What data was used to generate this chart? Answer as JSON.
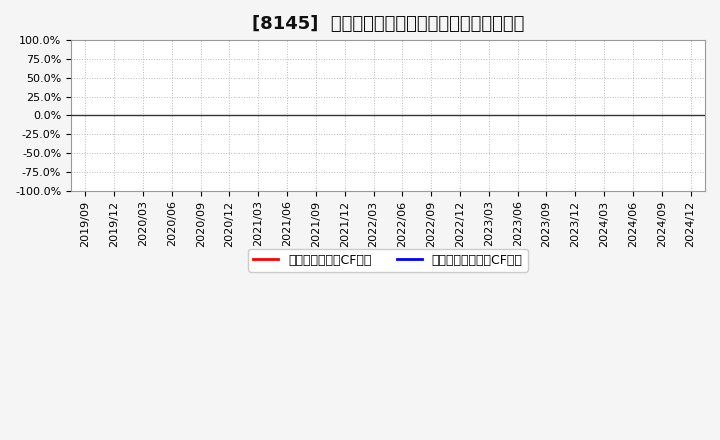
{
  "title": "[8145]  有利子負債キャッシュフロー比率の推移",
  "ylim": [
    -1.0,
    1.0
  ],
  "yticks": [
    -1.0,
    -0.75,
    -0.5,
    -0.25,
    0.0,
    0.25,
    0.5,
    0.75,
    1.0
  ],
  "ytick_labels": [
    "-100.0%",
    "-75.0%",
    "-50.0%",
    "-25.0%",
    "0.0%",
    "25.0%",
    "50.0%",
    "75.0%",
    "100.0%"
  ],
  "xtick_labels": [
    "2019/09",
    "2019/12",
    "2020/03",
    "2020/06",
    "2020/09",
    "2020/12",
    "2021/03",
    "2021/06",
    "2021/09",
    "2021/12",
    "2022/03",
    "2022/06",
    "2022/09",
    "2022/12",
    "2023/03",
    "2023/06",
    "2023/09",
    "2023/12",
    "2024/03",
    "2024/06",
    "2024/09",
    "2024/12"
  ],
  "legend_labels": [
    "有利子負債営業CF比率",
    "有利子負債フリーCF比率"
  ],
  "legend_colors": [
    "#ff0000",
    "#0000ff"
  ],
  "background_color": "#f5f5f5",
  "plot_bg_color": "#ffffff",
  "grid_color": "#bbbbbb",
  "zero_line_color": "#333333",
  "title_fontsize": 13,
  "tick_fontsize": 8,
  "legend_fontsize": 9
}
